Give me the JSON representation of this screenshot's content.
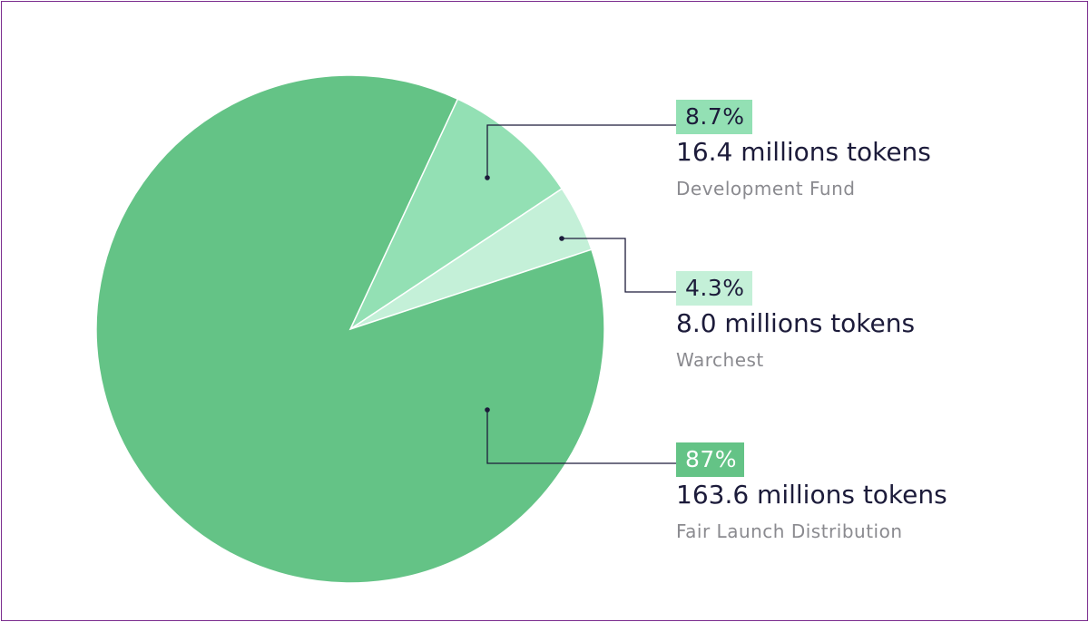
{
  "chart_data": {
    "type": "pie",
    "title": "",
    "slices": [
      {
        "name": "Fair Launch Distribution",
        "percent_label": "87%",
        "value": 163.6,
        "tokens_label": "163.6 millions tokens",
        "color": "#64c386",
        "label_bg": "#64c386",
        "label_fg": "#ffffff"
      },
      {
        "name": "Development Fund",
        "percent_label": "8.7%",
        "value": 16.4,
        "tokens_label": "16.4 millions tokens",
        "color": "#93e0b4",
        "label_bg": "#93e0b4",
        "label_fg": "#1c1b3a"
      },
      {
        "name": "Warchest",
        "percent_label": "4.3%",
        "value": 8.0,
        "tokens_label": "8.0 millions tokens",
        "color": "#c4f0d8",
        "label_bg": "#c4f0d8",
        "label_fg": "#1c1b3a"
      }
    ]
  },
  "colors": {
    "frame_border": "#7b2d8e",
    "leader_line": "#1c1b3a",
    "separator": "#ffffff"
  }
}
